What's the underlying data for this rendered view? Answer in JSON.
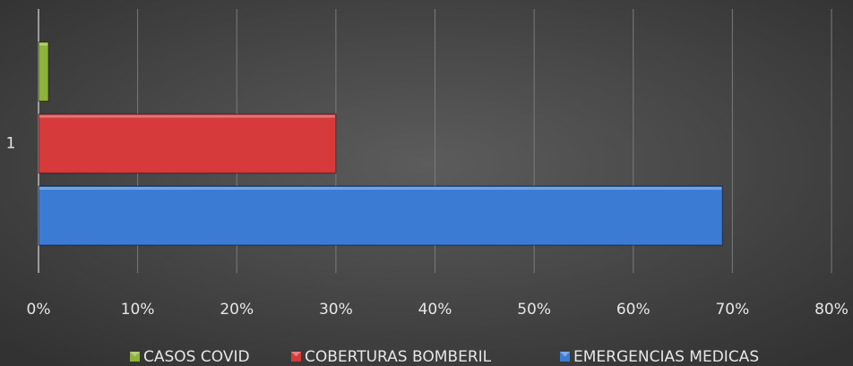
{
  "chart_data": {
    "type": "bar",
    "orientation": "horizontal",
    "categories": [
      "1"
    ],
    "series": [
      {
        "name": "CASOS COVID",
        "color": "#8db33a",
        "values": [
          1
        ]
      },
      {
        "name": "COBERTURAS BOMBERIL",
        "color": "#d63a3a",
        "values": [
          30
        ]
      },
      {
        "name": "EMERGENCIAS MEDICAS",
        "color": "#3b7bd4",
        "values": [
          69
        ]
      }
    ],
    "xlim": [
      0,
      80
    ],
    "xticks": [
      {
        "value": 0,
        "label": "0%"
      },
      {
        "value": 10,
        "label": "10%"
      },
      {
        "value": 20,
        "label": "20%"
      },
      {
        "value": 30,
        "label": "30%"
      },
      {
        "value": 40,
        "label": "40%"
      },
      {
        "value": 50,
        "label": "50%"
      },
      {
        "value": 60,
        "label": "60%"
      },
      {
        "value": 70,
        "label": "70%"
      },
      {
        "value": 80,
        "label": "80%"
      }
    ],
    "grid": true,
    "legend": "bottom"
  }
}
